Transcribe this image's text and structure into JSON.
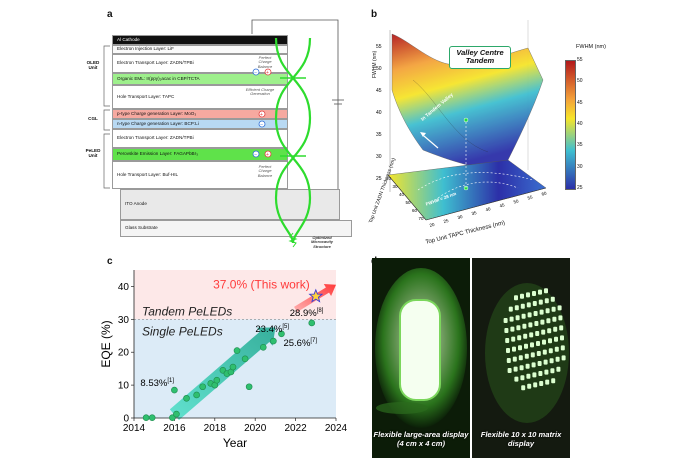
{
  "panel_labels": {
    "a": "a",
    "b": "b",
    "c": "c",
    "d": "d"
  },
  "panel_a": {
    "layers": [
      {
        "text": "Al Cathode"
      },
      {
        "text": "Electron Injection Layer: LiF"
      },
      {
        "text": "Electron Transport Layer: ZADN/TPBi"
      },
      {
        "text": "Organic EML: Ir(ppy)₂acac in CBP/TCTA"
      },
      {
        "text": "Hole Transport Layer: TAPC"
      },
      {
        "text": "p-type Charge generation Layer: MoO₃"
      },
      {
        "text": "n-type Charge generation Layer: BCP:Li"
      },
      {
        "text": "Electron Transport Layer: ZADN/TPBi"
      },
      {
        "text": "Perovskite Emission Layer: FAGAPbBr₃"
      },
      {
        "text": "Hole Transport Layer: Buf-HIL"
      },
      {
        "text": "ITO Anode"
      },
      {
        "text": "Glass Substrate"
      }
    ],
    "side_labels": {
      "oled": "OLED Unit",
      "cgl": "CGL",
      "peled": "PeLED Unit"
    },
    "notes": {
      "balance_top": "Perfect Charge Balance",
      "generation": "Efficient Charge Generation",
      "balance_bottom": "Perfect Charge Balance",
      "cavity": "Optimized Microcavity Structure"
    }
  },
  "panel_b": {
    "z_label": "FWHM (nm)",
    "z_ticks": [
      "25",
      "30",
      "35",
      "40",
      "45",
      "50",
      "55"
    ],
    "x_label": "Top Unit TAPC Thickness (nm)",
    "y_label": "Top Unit ZADN Thickness (nm)",
    "x_ticks": [
      "20",
      "25",
      "30",
      "35",
      "40",
      "45",
      "50",
      "55",
      "60"
    ],
    "y_ticks": [
      "20",
      "30",
      "40",
      "50",
      "60",
      "70"
    ],
    "colorbar_title": "FWHM (nm)",
    "colorbar_ticks": [
      "55",
      "50",
      "45",
      "40",
      "35",
      "30",
      "25"
    ],
    "callout": "Valley Centre Tandem",
    "valley_label": "In Tandem Valley",
    "contour_label": "FWHM = 28 nm",
    "colors": {
      "high": "#b2181b",
      "mid": "#f6e52a",
      "low": "#2c2fa8"
    }
  },
  "chart_data": {
    "type": "scatter",
    "title": "",
    "xlabel": "Year",
    "ylabel": "EQE (%)",
    "xlim": [
      2014,
      2024
    ],
    "ylim": [
      0,
      45
    ],
    "x_ticks": [
      "2014",
      "2016",
      "2018",
      "2020",
      "2022",
      "2024"
    ],
    "y_ticks": [
      "0",
      "10",
      "20",
      "30",
      "40"
    ],
    "series": [
      {
        "points": [
          [
            2014.6,
            0.1
          ],
          [
            2014.9,
            0.1
          ],
          [
            2015.9,
            0.1
          ],
          [
            2016.0,
            8.5
          ],
          [
            2016.1,
            1.2
          ],
          [
            2016.6,
            6.0
          ],
          [
            2017.1,
            7.0
          ],
          [
            2017.4,
            9.5
          ],
          [
            2017.8,
            10.5
          ],
          [
            2018.0,
            10.0
          ],
          [
            2018.1,
            11.5
          ],
          [
            2018.4,
            14.5
          ],
          [
            2018.6,
            13.5
          ],
          [
            2018.8,
            14.0
          ],
          [
            2018.9,
            15.5
          ],
          [
            2019.1,
            20.5
          ],
          [
            2019.5,
            18.0
          ],
          [
            2019.7,
            9.5
          ],
          [
            2020.4,
            21.5
          ],
          [
            2020.9,
            23.4
          ],
          [
            2021.3,
            25.6
          ],
          [
            2022.8,
            28.9
          ]
        ]
      }
    ],
    "highlight": {
      "x": 2023.0,
      "y": 37.0,
      "label": "37.0% (This work)"
    },
    "regions": {
      "tandem_label": "Tandem PeLEDs",
      "single_label": "Single PeLEDs",
      "divider_y": 30
    },
    "annotations": [
      {
        "value": "8.53%",
        "ref": "[1]",
        "x": 2016.0,
        "y": 8.53
      },
      {
        "value": "23.4%",
        "ref": "[5]",
        "x": 2020.9,
        "y": 23.4
      },
      {
        "value": "25.6%",
        "ref": "[7]",
        "x": 2021.3,
        "y": 25.6
      },
      {
        "value": "28.9%",
        "ref": "[8]",
        "x": 2022.8,
        "y": 28.9
      }
    ],
    "colors": {
      "points": "#2fbf6f",
      "highlight": "#ff3b3b",
      "tandem_bg": "#fde8e8",
      "single_bg": "#dcebf7"
    }
  },
  "panel_d": {
    "left_caption": "Flexible large-area display (4 cm x 4 cm)",
    "right_caption": "Flexible 10 x 10 matrix display"
  }
}
